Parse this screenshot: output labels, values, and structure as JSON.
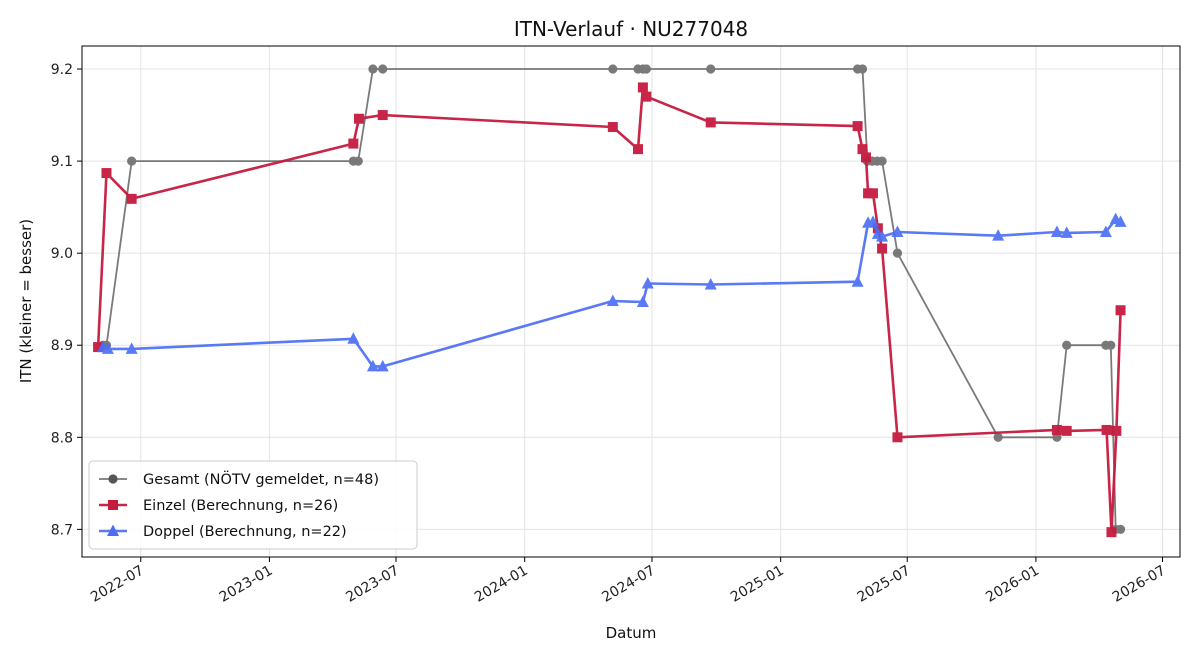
{
  "chart_data": {
    "type": "line",
    "title": "ITN-Verlauf · NU277048",
    "xlabel": "Datum",
    "ylabel": "ITN  (kleiner = besser)",
    "x_ticks": [
      "2022-07",
      "2023-01",
      "2023-07",
      "2024-01",
      "2024-07",
      "2025-01",
      "2025-07",
      "2026-01",
      "2026-07"
    ],
    "y_ticks": [
      "8.7",
      "8.8",
      "8.9",
      "9.0",
      "9.1",
      "9.2"
    ],
    "xlim": [
      "2022-04-08",
      "2026-07-26"
    ],
    "ylim": [
      8.67,
      9.225
    ],
    "grid": true,
    "legend_position": "lower-left",
    "series": [
      {
        "name": "Gesamt (NÖTV gemeldet, n=48)",
        "color": "#555555",
        "marker": "circle",
        "points": [
          [
            "2022-05-08",
            8.9
          ],
          [
            "2022-05-13",
            8.9
          ],
          [
            "2022-06-18",
            9.1
          ],
          [
            "2023-05-01",
            9.1
          ],
          [
            "2023-05-08",
            9.1
          ],
          [
            "2023-05-29",
            9.2
          ],
          [
            "2023-06-12",
            9.2
          ],
          [
            "2024-05-06",
            9.2
          ],
          [
            "2024-06-11",
            9.2
          ],
          [
            "2024-06-18",
            9.2
          ],
          [
            "2024-06-23",
            9.2
          ],
          [
            "2024-09-23",
            9.2
          ],
          [
            "2025-04-21",
            9.2
          ],
          [
            "2025-04-28",
            9.2
          ],
          [
            "2025-05-05",
            9.1
          ],
          [
            "2025-05-12",
            9.1
          ],
          [
            "2025-05-19",
            9.1
          ],
          [
            "2025-05-26",
            9.1
          ],
          [
            "2025-06-17",
            9.0
          ],
          [
            "2025-11-08",
            8.8
          ],
          [
            "2026-01-31",
            8.8
          ],
          [
            "2026-02-14",
            8.9
          ],
          [
            "2026-04-11",
            8.9
          ],
          [
            "2026-04-18",
            8.9
          ],
          [
            "2026-04-25",
            8.7
          ],
          [
            "2026-05-02",
            8.7
          ]
        ]
      },
      {
        "name": "Einzel (Berechnung, n=26)",
        "color": "#c51b3f",
        "marker": "square",
        "points": [
          [
            "2022-05-01",
            8.898
          ],
          [
            "2022-05-13",
            9.087
          ],
          [
            "2022-06-18",
            9.059
          ],
          [
            "2023-05-01",
            9.119
          ],
          [
            "2023-05-09",
            9.146
          ],
          [
            "2023-06-12",
            9.15
          ],
          [
            "2024-05-06",
            9.137
          ],
          [
            "2024-06-11",
            9.113
          ],
          [
            "2024-06-18",
            9.18
          ],
          [
            "2024-06-23",
            9.17
          ],
          [
            "2024-09-23",
            9.142
          ],
          [
            "2025-04-21",
            9.138
          ],
          [
            "2025-04-28",
            9.113
          ],
          [
            "2025-05-03",
            9.104
          ],
          [
            "2025-05-06",
            9.065
          ],
          [
            "2025-05-13",
            9.065
          ],
          [
            "2025-05-20",
            9.027
          ],
          [
            "2025-05-26",
            9.005
          ],
          [
            "2025-06-17",
            8.8
          ],
          [
            "2026-01-31",
            8.808
          ],
          [
            "2026-02-14",
            8.807
          ],
          [
            "2026-04-12",
            8.808
          ],
          [
            "2026-04-19",
            8.697
          ],
          [
            "2026-04-26",
            8.807
          ],
          [
            "2026-05-02",
            8.938
          ]
        ]
      },
      {
        "name": "Doppel (Berechnung, n=22)",
        "color": "#4c6ef5",
        "marker": "triangle",
        "points": [
          [
            "2022-05-08",
            8.898
          ],
          [
            "2022-05-15",
            8.896
          ],
          [
            "2022-06-18",
            8.896
          ],
          [
            "2023-05-01",
            8.907
          ],
          [
            "2023-05-29",
            8.877
          ],
          [
            "2023-06-12",
            8.877
          ],
          [
            "2024-05-06",
            8.948
          ],
          [
            "2024-06-18",
            8.947
          ],
          [
            "2024-06-25",
            8.967
          ],
          [
            "2024-09-23",
            8.966
          ],
          [
            "2025-04-21",
            8.969
          ],
          [
            "2025-05-06",
            9.033
          ],
          [
            "2025-05-13",
            9.034
          ],
          [
            "2025-05-20",
            9.021
          ],
          [
            "2025-05-26",
            9.018
          ],
          [
            "2025-06-17",
            9.023
          ],
          [
            "2025-11-08",
            9.019
          ],
          [
            "2026-01-31",
            9.023
          ],
          [
            "2026-02-14",
            9.022
          ],
          [
            "2026-04-11",
            9.023
          ],
          [
            "2026-04-25",
            9.037
          ],
          [
            "2026-05-02",
            9.034
          ]
        ]
      }
    ]
  }
}
